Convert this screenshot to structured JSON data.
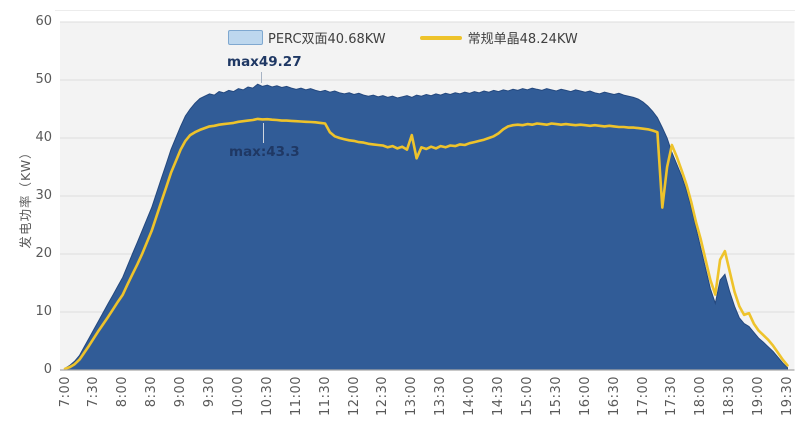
{
  "chart_data": {
    "type": "area",
    "title": "",
    "ylabel": "发电功率（KW）",
    "xlabel": "",
    "ylim": [
      0,
      60
    ],
    "y_ticks": [
      0,
      10,
      20,
      30,
      40,
      50,
      60
    ],
    "grid": "horizontal",
    "legend_position": "top",
    "plot_bg": "#f3f3f3",
    "grid_color": "#dcdcdc",
    "axis_color": "#a6a6a6",
    "x_tick_labels": [
      "7:00",
      "7:30",
      "8:00",
      "8:30",
      "9:00",
      "9:30",
      "10:00",
      "10:30",
      "11:00",
      "11:30",
      "12:00",
      "12:30",
      "13:00",
      "13:30",
      "14:00",
      "14:30",
      "15:00",
      "15:30",
      "16:00",
      "16:30",
      "17:00",
      "17:30",
      "18:00",
      "18:30",
      "19:00",
      "19:30"
    ],
    "x_tick_step_minutes": 30,
    "x_range_minutes": [
      420,
      1170
    ],
    "sample_step_minutes": 5,
    "series": [
      {
        "name": "PERC双面40.68KW",
        "type": "area",
        "color": "#315c97",
        "edge_color": "#24487e",
        "max": 49.27,
        "values": [
          0.3,
          0.8,
          1.5,
          2.5,
          4,
          5.5,
          7,
          8.5,
          10,
          11.5,
          13,
          14.5,
          16,
          18,
          20,
          22,
          24,
          26,
          28,
          30.5,
          33,
          35.5,
          38,
          40,
          42,
          43.8,
          45,
          46,
          46.8,
          47.2,
          47.6,
          47.4,
          48,
          47.8,
          48.2,
          48,
          48.5,
          48.3,
          48.8,
          48.6,
          49.27,
          48.9,
          49.1,
          48.8,
          49,
          48.7,
          48.9,
          48.6,
          48.4,
          48.6,
          48.3,
          48.5,
          48.2,
          48,
          48.2,
          47.9,
          48.1,
          47.8,
          47.6,
          47.8,
          47.5,
          47.7,
          47.4,
          47.2,
          47.4,
          47.1,
          47.3,
          47,
          47.2,
          46.9,
          47.1,
          47.3,
          47,
          47.4,
          47.2,
          47.5,
          47.3,
          47.6,
          47.4,
          47.7,
          47.5,
          47.8,
          47.6,
          47.9,
          47.7,
          48,
          47.8,
          48.1,
          47.9,
          48.2,
          48,
          48.3,
          48.1,
          48.4,
          48.2,
          48.5,
          48.3,
          48.6,
          48.4,
          48.2,
          48.5,
          48.3,
          48.1,
          48.4,
          48.2,
          48,
          48.3,
          48.1,
          47.9,
          48.1,
          47.8,
          47.6,
          47.9,
          47.7,
          47.5,
          47.7,
          47.4,
          47.2,
          47,
          46.7,
          46.2,
          45.5,
          44.6,
          43.5,
          41.8,
          40,
          37.5,
          35.5,
          33.5,
          31,
          28,
          24.5,
          21,
          17.5,
          14,
          11.5,
          15.5,
          16.5,
          13.5,
          11,
          9,
          8,
          7.5,
          6.5,
          5.5,
          4.8,
          4,
          3.2,
          2.2,
          1.2,
          0.4
        ]
      },
      {
        "name": "常规单晶48.24KW",
        "type": "line",
        "color": "#eec32b",
        "max": 43.3,
        "values": [
          0.2,
          0.5,
          1,
          1.8,
          3,
          4.2,
          5.5,
          6.8,
          8,
          9.2,
          10.5,
          11.8,
          13,
          14.8,
          16.5,
          18.2,
          20,
          22,
          24,
          26.5,
          29,
          31.5,
          34,
          36,
          38,
          39.5,
          40.5,
          41,
          41.4,
          41.7,
          42,
          42.1,
          42.3,
          42.4,
          42.5,
          42.6,
          42.8,
          42.9,
          43,
          43.1,
          43.3,
          43.2,
          43.25,
          43.15,
          43.1,
          43,
          43,
          42.95,
          42.9,
          42.85,
          42.8,
          42.75,
          42.7,
          42.6,
          42.5,
          41,
          40.3,
          40,
          39.8,
          39.6,
          39.5,
          39.3,
          39.2,
          39,
          38.9,
          38.8,
          38.7,
          38.4,
          38.6,
          38.2,
          38.5,
          38,
          40.5,
          36.5,
          38.4,
          38.1,
          38.5,
          38.2,
          38.6,
          38.4,
          38.7,
          38.6,
          38.9,
          38.8,
          39.1,
          39.3,
          39.5,
          39.7,
          40,
          40.3,
          40.8,
          41.5,
          42,
          42.2,
          42.3,
          42.2,
          42.4,
          42.3,
          42.5,
          42.4,
          42.3,
          42.5,
          42.4,
          42.3,
          42.4,
          42.3,
          42.2,
          42.3,
          42.2,
          42.1,
          42.2,
          42.1,
          42,
          42.1,
          42,
          41.9,
          41.9,
          41.8,
          41.8,
          41.7,
          41.6,
          41.5,
          41.3,
          41,
          28,
          35,
          38.8,
          36.8,
          34.5,
          32,
          29,
          25.5,
          22.5,
          19,
          15.5,
          13,
          19,
          20.5,
          17,
          13.5,
          11,
          9.5,
          9.8,
          8,
          6.8,
          6,
          5.2,
          4.2,
          3,
          1.8,
          0.8
        ]
      }
    ],
    "annotations": [
      {
        "text": "max49.27",
        "series": "PERC双面40.68KW",
        "value": 49.27
      },
      {
        "text": "max:43.3",
        "series": "常规单晶48.24KW",
        "value": 43.3
      }
    ]
  },
  "legend": {
    "items": [
      {
        "label": "PERC双面40.68KW",
        "swatch": "blue-area"
      },
      {
        "label": "常规单晶48.24KW",
        "swatch": "yellow-line"
      }
    ]
  }
}
